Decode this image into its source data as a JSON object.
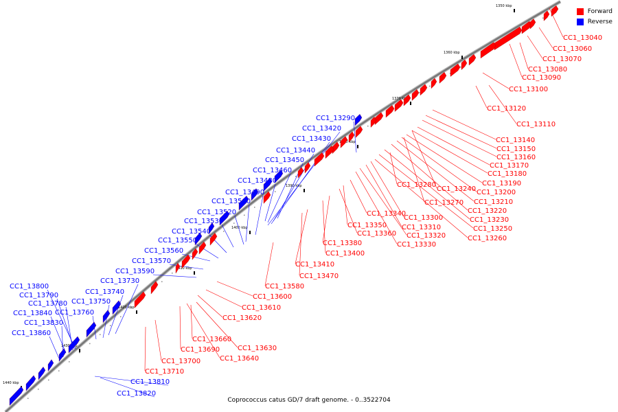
{
  "caption": "Coprococcus catus GD/7 draft genome. - 0..3522704",
  "legend": [
    {
      "label": "Forward",
      "color": "#ff0000"
    },
    {
      "label": "Reverse",
      "color": "#0000ff"
    }
  ],
  "colors": {
    "forward": "#ff0000",
    "reverse": "#0000ff",
    "backbone": "#777777"
  },
  "ticks": [
    "1350 kbp",
    "1360 kbp",
    "1370 kbp",
    "1380 kbp",
    "1390 kbp",
    "1400 kbp",
    "1410 kbp",
    "1420 kbp",
    "1430 kbp",
    "1440 kbp"
  ],
  "forward_labels": [
    "CC1_13040",
    "CC1_13060",
    "CC1_13070",
    "CC1_13080",
    "CC1_13090",
    "CC1_13100",
    "CC1_13120",
    "CC1_13110",
    "CC1_13140",
    "CC1_13150",
    "CC1_13160",
    "CC1_13170",
    "CC1_13180",
    "CC1_13190",
    "CC1_13200",
    "CC1_13210",
    "CC1_13220",
    "CC1_13230",
    "CC1_13250",
    "CC1_13260",
    "CC1_13280",
    "CC1_13240",
    "CC1_13270",
    "CC1_13300",
    "CC1_13310",
    "CC1_13320",
    "CC1_13330",
    "CC1_13340",
    "CC1_13350",
    "CC1_13360",
    "CC1_13380",
    "CC1_13400",
    "CC1_13410",
    "CC1_13470",
    "CC1_13580",
    "CC1_13600",
    "CC1_13610",
    "CC1_13620",
    "CC1_13660",
    "CC1_13630",
    "CC1_13690",
    "CC1_13640",
    "CC1_13700",
    "CC1_13710"
  ],
  "reverse_labels": [
    "CC1_13290",
    "CC1_13420",
    "CC1_13430",
    "CC1_13440",
    "CC1_13450",
    "CC1_13460",
    "CC1_13480",
    "CC1_13490",
    "CC1_13500",
    "CC1_13520",
    "CC1_13530",
    "CC1_13540",
    "CC1_13550",
    "CC1_13560",
    "CC1_13570",
    "CC1_13590",
    "CC1_13730",
    "CC1_13740",
    "CC1_13750",
    "CC1_13760",
    "CC1_13800",
    "CC1_13790",
    "CC1_13780",
    "CC1_13840",
    "CC1_13830",
    "CC1_13860",
    "CC1_13810",
    "CC1_13820"
  ]
}
